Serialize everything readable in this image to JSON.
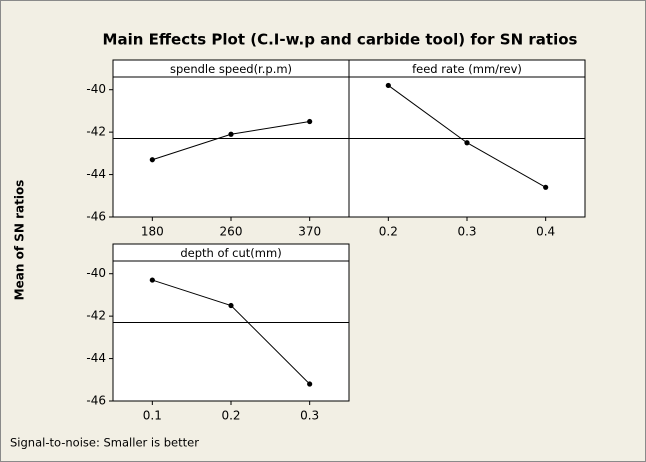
{
  "title": "Main Effects Plot (C.I-w.p and carbide tool) for SN ratios",
  "ylabel": "Mean of SN ratios",
  "footnote": "Signal-to-noise: Smaller is better",
  "chart_data": [
    {
      "type": "line",
      "title": "spendle speed(r.p.m)",
      "categories": [
        "180",
        "260",
        "370"
      ],
      "values": [
        -43.3,
        -42.1,
        -41.5
      ],
      "color": "#000000",
      "hline": -42.3,
      "ylim": [
        -46,
        -38.6
      ],
      "yticks": [
        -46,
        -44,
        -42,
        -40
      ]
    },
    {
      "type": "line",
      "title": "feed rate (mm/rev)",
      "categories": [
        "0.2",
        "0.3",
        "0.4"
      ],
      "values": [
        -39.8,
        -42.5,
        -44.6
      ],
      "color": "#000000",
      "hline": -42.3,
      "ylim": [
        -46,
        -38.6
      ],
      "yticks": [
        -46,
        -44,
        -42,
        -40
      ]
    },
    {
      "type": "line",
      "title": "depth of cut(mm)",
      "categories": [
        "0.1",
        "0.2",
        "0.3"
      ],
      "values": [
        -40.3,
        -41.5,
        -45.2
      ],
      "color": "#000000",
      "hline": -42.3,
      "ylim": [
        -46,
        -38.6
      ],
      "yticks": [
        -46,
        -44,
        -42,
        -40
      ]
    }
  ]
}
